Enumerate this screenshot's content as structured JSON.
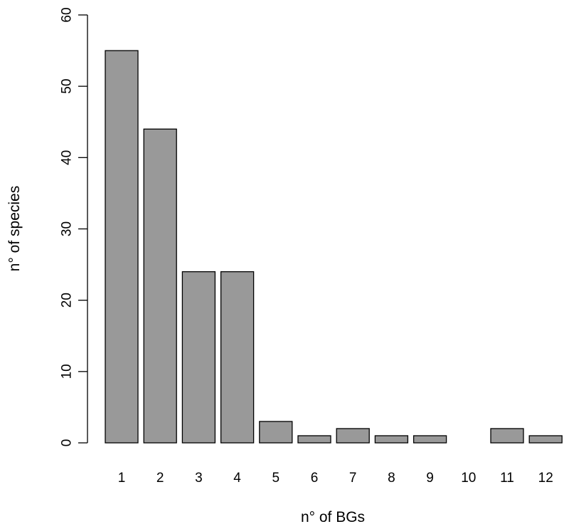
{
  "chart_data": {
    "type": "bar",
    "categories": [
      "1",
      "2",
      "3",
      "4",
      "5",
      "6",
      "7",
      "8",
      "9",
      "10",
      "11",
      "12"
    ],
    "values": [
      55,
      44,
      24,
      24,
      3,
      1,
      2,
      1,
      1,
      0,
      2,
      1
    ],
    "xlabel": "n° of BGs",
    "ylabel": "n° of species",
    "ylim": [
      0,
      60
    ],
    "yticks": [
      "0",
      "10",
      "20",
      "30",
      "40",
      "50",
      "60"
    ],
    "bar_color": "#999999",
    "bar_border_color": "#000000",
    "grid": false,
    "legend": "none"
  }
}
